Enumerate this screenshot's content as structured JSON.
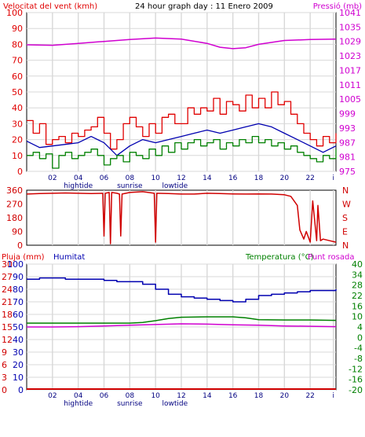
{
  "header": {
    "left_title": "Velocitat del vent (kmh)",
    "center_title": "24 hour graph day : 11 Enero 2009",
    "right_title": "Pressió (mb)"
  },
  "colors": {
    "wind": "#e00000",
    "gust": "#e00000",
    "avg_wind": "#0000b0",
    "low_wind": "#008000",
    "pressure": "#d000d0",
    "direction": "#d00000",
    "humidity": "#0000b0",
    "temperature": "#008000",
    "dewpoint": "#d000d0",
    "rain": "#d00000",
    "grid": "#d8d8d8",
    "frame": "#000000"
  },
  "time_axis": {
    "labels": [
      "02",
      "04",
      "06",
      "08",
      "10",
      "12",
      "14",
      "16",
      "18",
      "20",
      "22",
      "i"
    ],
    "positions_hours": [
      2,
      4,
      6,
      8,
      10,
      12,
      14,
      16,
      18,
      20,
      22,
      23.8
    ],
    "events": [
      {
        "label": "hightide",
        "hour": 4
      },
      {
        "label": "sunrise",
        "hour": 8
      },
      {
        "label": "lowtide",
        "hour": 11.5
      }
    ]
  },
  "chart_data": [
    {
      "type": "line",
      "id": "wind_pressure",
      "title": "Velocitat del vent (kmh)",
      "title_right": "Pressió (mb)",
      "x_range": [
        0,
        24
      ],
      "ylim": [
        0,
        100
      ],
      "y_ticks": [
        0,
        10,
        20,
        30,
        40,
        50,
        60,
        70,
        80,
        90,
        100
      ],
      "y2lim": [
        975,
        1041
      ],
      "y2_ticks": [
        975,
        981,
        987,
        993,
        999,
        1005,
        1011,
        1017,
        1023,
        1029,
        1035,
        1041
      ],
      "series": [
        {
          "key": "wind",
          "axis": "left",
          "x": [
            0,
            0.5,
            1,
            1.5,
            2,
            2.5,
            3,
            3.5,
            4,
            4.5,
            5,
            5.5,
            6,
            6.5,
            7,
            7.5,
            8,
            8.5,
            9,
            9.5,
            10,
            10.5,
            11,
            11.5,
            12,
            12.5,
            13,
            13.5,
            14,
            14.5,
            15,
            15.5,
            16,
            16.5,
            17,
            17.5,
            18,
            18.5,
            19,
            19.5,
            20,
            20.5,
            21,
            21.5,
            22,
            22.5,
            23,
            23.5,
            24
          ],
          "values": [
            32,
            24,
            30,
            17,
            20,
            22,
            18,
            24,
            22,
            26,
            28,
            34,
            24,
            14,
            20,
            30,
            34,
            28,
            22,
            30,
            24,
            34,
            36,
            30,
            30,
            40,
            36,
            40,
            38,
            46,
            36,
            44,
            42,
            38,
            48,
            40,
            46,
            40,
            50,
            42,
            44,
            36,
            30,
            24,
            20,
            16,
            22,
            18,
            24
          ]
        },
        {
          "key": "avg_wind",
          "axis": "left",
          "x": [
            0,
            1,
            2,
            3,
            4,
            5,
            6,
            7,
            8,
            9,
            10,
            11,
            12,
            13,
            14,
            15,
            16,
            17,
            18,
            19,
            20,
            21,
            22,
            23,
            24
          ],
          "values": [
            19,
            15,
            16,
            17,
            18,
            22,
            18,
            10,
            16,
            20,
            18,
            20,
            22,
            24,
            26,
            24,
            26,
            28,
            30,
            28,
            24,
            20,
            16,
            12,
            16
          ]
        },
        {
          "key": "low_wind",
          "axis": "left",
          "x": [
            0,
            0.5,
            1,
            1.5,
            2,
            2.5,
            3,
            3.5,
            4,
            4.5,
            5,
            5.5,
            6,
            6.5,
            7,
            7.5,
            8,
            8.5,
            9,
            9.5,
            10,
            10.5,
            11,
            11.5,
            12,
            12.5,
            13,
            13.5,
            14,
            14.5,
            15,
            15.5,
            16,
            16.5,
            17,
            17.5,
            18,
            18.5,
            19,
            19.5,
            20,
            20.5,
            21,
            21.5,
            22,
            22.5,
            23,
            23.5,
            24
          ],
          "values": [
            10,
            12,
            8,
            11,
            2,
            10,
            12,
            8,
            10,
            12,
            14,
            10,
            4,
            8,
            10,
            6,
            12,
            10,
            8,
            14,
            10,
            16,
            12,
            18,
            14,
            18,
            20,
            16,
            18,
            20,
            14,
            18,
            16,
            20,
            18,
            22,
            18,
            20,
            16,
            18,
            14,
            16,
            12,
            10,
            8,
            6,
            10,
            8,
            14
          ]
        },
        {
          "key": "pressure",
          "axis": "right",
          "x": [
            0,
            2,
            4,
            6,
            8,
            10,
            12,
            14,
            15,
            16,
            17,
            18,
            20,
            22,
            24
          ],
          "values": [
            1027.6,
            1027.4,
            1028.2,
            1029,
            1029.8,
            1030.4,
            1030,
            1028.2,
            1026.6,
            1026,
            1026.4,
            1027.8,
            1029.4,
            1029.8,
            1030
          ]
        }
      ]
    },
    {
      "type": "line",
      "id": "wind_direction",
      "x_range": [
        0,
        24
      ],
      "ylim": [
        0,
        360
      ],
      "y_ticks": [
        0,
        90,
        180,
        270,
        360
      ],
      "right_labels": [
        "N",
        "W",
        "S",
        "E",
        "N"
      ],
      "series": [
        {
          "key": "direction",
          "axis": "left",
          "x": [
            0,
            1,
            2,
            3,
            4,
            5,
            5.9,
            6,
            6.1,
            6.4,
            6.5,
            6.6,
            7,
            7.2,
            7.3,
            7.4,
            8,
            9,
            9.9,
            10,
            10.1,
            11,
            12,
            13,
            14,
            15,
            16,
            17,
            18,
            19,
            20,
            20.5,
            21,
            21.2,
            21.5,
            21.7,
            22,
            22.2,
            22.5,
            22.6,
            22.8,
            23,
            23.5,
            24
          ],
          "values": [
            335,
            338,
            340,
            342,
            340,
            338,
            340,
            60,
            340,
            345,
            10,
            345,
            340,
            335,
            60,
            335,
            345,
            350,
            340,
            20,
            340,
            338,
            335,
            335,
            340,
            338,
            336,
            335,
            336,
            335,
            330,
            320,
            260,
            100,
            40,
            90,
            20,
            290,
            30,
            260,
            30,
            40,
            30,
            20
          ]
        }
      ]
    },
    {
      "type": "line",
      "id": "humidity_temperature",
      "left_title": "Pluja (mm)",
      "left_title2": "Humitat",
      "right_title": "Temperatura (°C)",
      "right_title2": "Punt rosada",
      "x_range": [
        0,
        24
      ],
      "y_ticks_rain": [
        0,
        3,
        6,
        9,
        12,
        15,
        18,
        21,
        24,
        27,
        30
      ],
      "y_ticks_humidity": [
        0,
        10,
        20,
        30,
        40,
        50,
        60,
        70,
        80,
        90,
        100
      ],
      "humidity_lim": [
        0,
        100
      ],
      "temperature_lim": [
        -20,
        40
      ],
      "temperature_ticks": [
        -20,
        -16,
        -12,
        -8,
        -4,
        0,
        4,
        10,
        16,
        22,
        28,
        34,
        40
      ],
      "series": [
        {
          "key": "humidity",
          "axis": "left",
          "x": [
            0,
            1,
            2,
            3,
            4,
            5,
            6,
            7,
            8,
            9,
            10,
            11,
            12,
            13,
            14,
            15,
            16,
            17,
            18,
            19,
            20,
            21,
            22,
            23,
            24
          ],
          "values": [
            88,
            89,
            89,
            88,
            88,
            88,
            87,
            86,
            86,
            84,
            80,
            76,
            74,
            73,
            72,
            71,
            70,
            72,
            75,
            76,
            77,
            78,
            79,
            79,
            80
          ]
        },
        {
          "key": "temperature",
          "axis": "right",
          "x": [
            0,
            2,
            4,
            6,
            8,
            9,
            10,
            11,
            12,
            14,
            16,
            17,
            18,
            20,
            22,
            24
          ],
          "values": [
            6.2,
            6.2,
            6.2,
            6.2,
            6.2,
            6.6,
            7.6,
            8.8,
            9.6,
            9.8,
            9.8,
            9.2,
            8.2,
            8.0,
            8.0,
            7.8
          ]
        },
        {
          "key": "dewpoint",
          "axis": "right",
          "x": [
            0,
            2,
            4,
            6,
            8,
            10,
            12,
            14,
            16,
            18,
            20,
            22,
            24
          ],
          "values": [
            4.0,
            4.0,
            4.2,
            4.6,
            5.0,
            5.4,
            5.8,
            5.6,
            5.2,
            5.0,
            4.6,
            4.4,
            4.2
          ]
        },
        {
          "key": "rain",
          "axis": "rain",
          "x": [
            0,
            24
          ],
          "values": [
            0,
            0
          ]
        }
      ]
    }
  ]
}
